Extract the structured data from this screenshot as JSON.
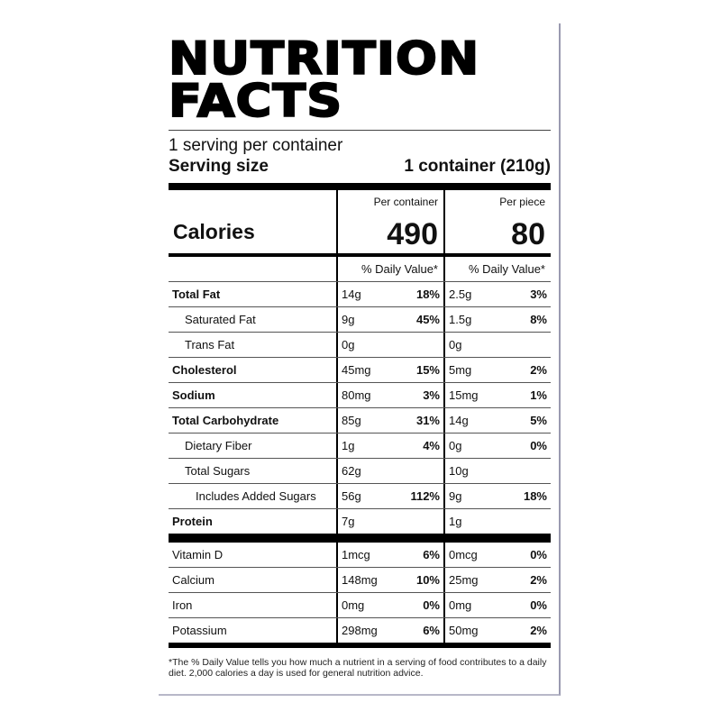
{
  "title_line1": "NUTRITION",
  "title_line2": "FACTS",
  "servings": "1 serving per container",
  "serving_size_label": "Serving size",
  "serving_size_value": "1 container (210g)",
  "col_headers": [
    "Per container",
    "Per piece"
  ],
  "calories_label": "Calories",
  "calories": [
    "490",
    "80"
  ],
  "dv_header": "% Daily Value*",
  "nutrients": [
    {
      "name": "Total Fat",
      "bold": true,
      "indent": 0,
      "a": "14g",
      "ap": "18%",
      "b": "2.5g",
      "bp": "3%"
    },
    {
      "name": "Saturated Fat",
      "bold": false,
      "indent": 1,
      "a": "9g",
      "ap": "45%",
      "b": "1.5g",
      "bp": "8%"
    },
    {
      "name": "Trans Fat",
      "bold": false,
      "indent": 1,
      "a": "0g",
      "ap": "",
      "b": "0g",
      "bp": ""
    },
    {
      "name": "Cholesterol",
      "bold": true,
      "indent": 0,
      "a": "45mg",
      "ap": "15%",
      "b": "5mg",
      "bp": "2%"
    },
    {
      "name": "Sodium",
      "bold": true,
      "indent": 0,
      "a": "80mg",
      "ap": "3%",
      "b": "15mg",
      "bp": "1%"
    },
    {
      "name": "Total Carbohydrate",
      "bold": true,
      "indent": 0,
      "a": "85g",
      "ap": "31%",
      "b": "14g",
      "bp": "5%"
    },
    {
      "name": "Dietary Fiber",
      "bold": false,
      "indent": 1,
      "a": "1g",
      "ap": "4%",
      "b": "0g",
      "bp": "0%"
    },
    {
      "name": "Total Sugars",
      "bold": false,
      "indent": 1,
      "a": "62g",
      "ap": "",
      "b": "10g",
      "bp": ""
    },
    {
      "name": "Includes Added Sugars",
      "bold": false,
      "indent": 2,
      "a": "56g",
      "ap": "112%",
      "b": "9g",
      "bp": "18%"
    },
    {
      "name": "Protein",
      "bold": true,
      "indent": 0,
      "a": "7g",
      "ap": "",
      "b": "1g",
      "bp": ""
    }
  ],
  "vitamins": [
    {
      "name": "Vitamin D",
      "a": "1mcg",
      "ap": "6%",
      "b": "0mcg",
      "bp": "0%"
    },
    {
      "name": "Calcium",
      "a": "148mg",
      "ap": "10%",
      "b": "25mg",
      "bp": "2%"
    },
    {
      "name": "Iron",
      "a": "0mg",
      "ap": "0%",
      "b": "0mg",
      "bp": "0%"
    },
    {
      "name": "Potassium",
      "a": "298mg",
      "ap": "6%",
      "b": "50mg",
      "bp": "2%"
    }
  ],
  "footnote": "*The % Daily Value tells you how much a nutrient in a serving of food contributes to a daily diet. 2,000 calories a day is used for general nutrition advice."
}
